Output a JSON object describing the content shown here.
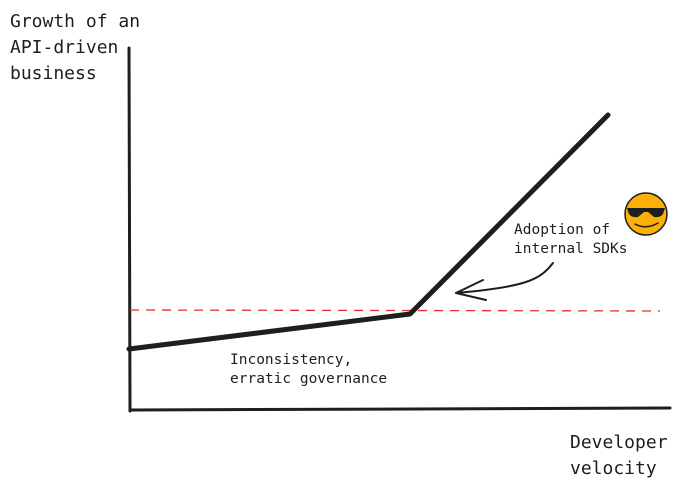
{
  "y_axis_label": "Growth of an\nAPI-driven\nbusiness",
  "x_axis_label": "Developer\nvelocity",
  "annotations": {
    "sdk_adoption": "Adoption of\ninternal SDKs",
    "inconsistency": "Inconsistency,\nerratic governance"
  },
  "lines": {
    "phase_1": "slow growth",
    "phase_2": "steep growth"
  },
  "colors": {
    "ink": "#1e1e1e",
    "threshold_line": "#e03131",
    "emoji_face": "#fab005"
  },
  "icons": {
    "emoji": "sunglasses-smiley-icon"
  }
}
